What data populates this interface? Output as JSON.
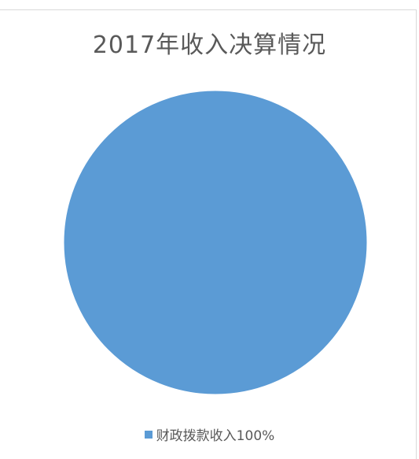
{
  "chart_data": {
    "type": "pie",
    "title": "2017年收入决算情况",
    "slices": [
      {
        "label": "财政拨款收入",
        "value": 100,
        "data_label": "财政拨款收入100%",
        "color": "#5B9BD5"
      }
    ],
    "legend_position": "bottom",
    "grid": false
  }
}
